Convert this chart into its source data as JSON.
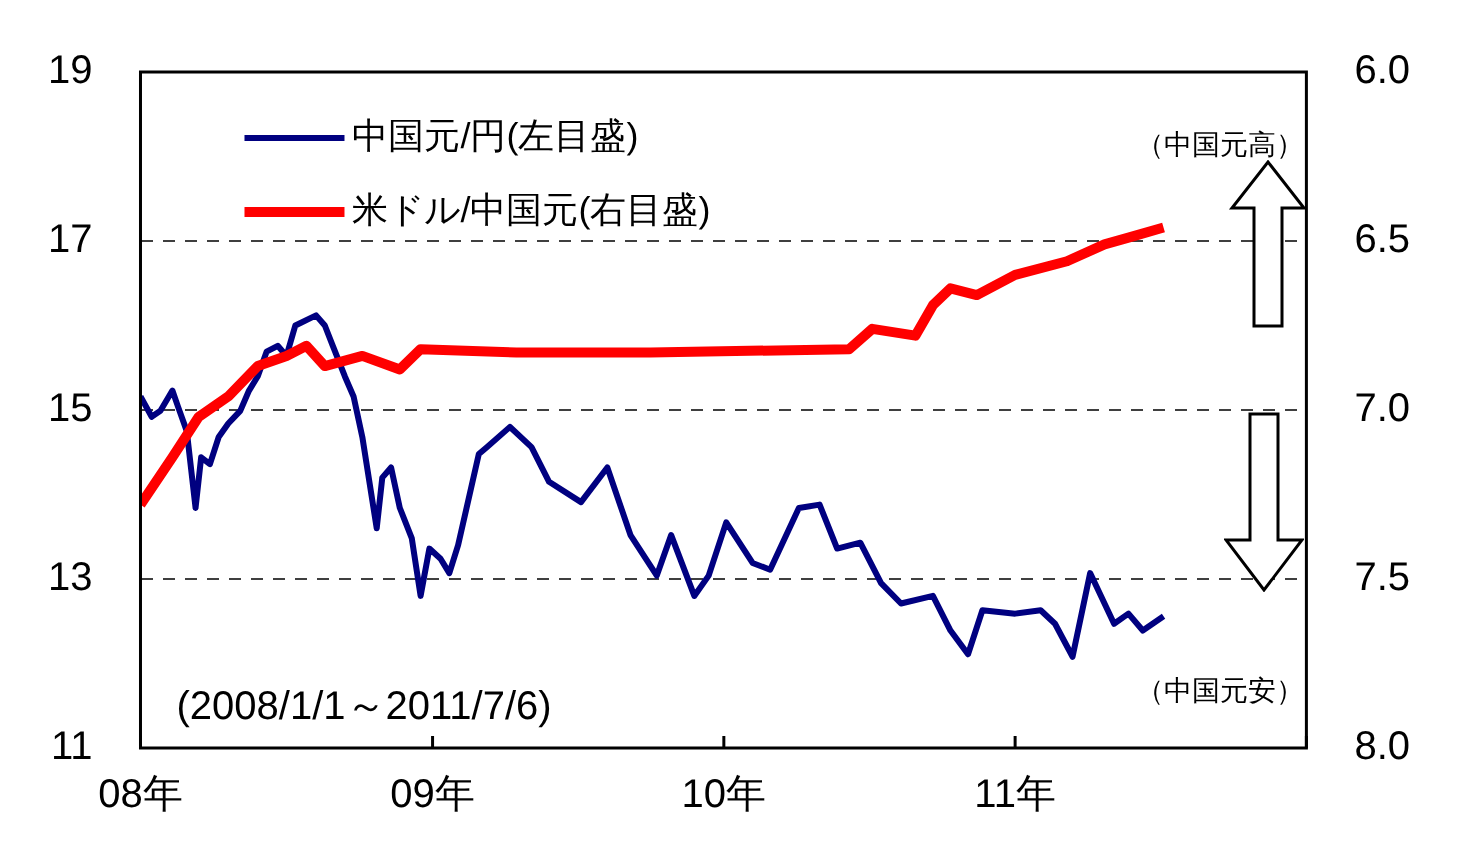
{
  "chart_data": {
    "type": "line",
    "annotations": [
      "(2008/1/1～2011/7/6)",
      "（中国元高）",
      "（中国元安）"
    ],
    "xlim": [
      "2008-01-01",
      "2012-01-01"
    ],
    "xticks": [
      {
        "value": "2008",
        "label": "08年"
      },
      {
        "value": "2009",
        "label": "09年"
      },
      {
        "value": "2010",
        "label": "10年"
      },
      {
        "value": "2011",
        "label": "11年"
      },
      {
        "value": "2012",
        "label": null
      }
    ],
    "ylim": [
      11,
      19
    ],
    "yticks": [
      11,
      13,
      15,
      17,
      19
    ],
    "y2lim": [
      8.0,
      6.0
    ],
    "y2ticks": [
      {
        "value": 6.0,
        "label": "6.0"
      },
      {
        "value": 6.5,
        "label": "6.5"
      },
      {
        "value": 7.0,
        "label": "7.0"
      },
      {
        "value": 7.5,
        "label": "7.5"
      },
      {
        "value": 8.0,
        "label": "8.0"
      }
    ],
    "grid": "y",
    "line_style": "solid",
    "marker": "none",
    "legend": "top left",
    "series": [
      {
        "name": "中国元/円(左目盛)",
        "color": "#000080",
        "x": [
          "2008-01-01",
          "2008-01-15",
          "2008-01-26",
          "2008-02-10",
          "2008-02-17",
          "2008-02-28",
          "2008-03-10",
          "2008-03-17",
          "2008-03-28",
          "2008-04-08",
          "2008-04-20",
          "2008-05-05",
          "2008-05-16",
          "2008-05-27",
          "2008-06-07",
          "2008-06-21",
          "2008-07-02",
          "2008-07-13",
          "2008-08-08",
          "2008-08-19",
          "2008-08-29",
          "2008-09-13",
          "2008-09-24",
          "2008-10-05",
          "2008-10-23",
          "2008-10-30",
          "2008-11-10",
          "2008-11-21",
          "2008-12-06",
          "2008-12-17",
          "2008-12-28",
          "2009-01-11",
          "2009-01-22",
          "2009-02-02",
          "2009-02-28",
          "2009-03-10",
          "2009-04-08",
          "2009-05-05",
          "2009-05-27",
          "2009-07-06",
          "2009-08-08",
          "2009-09-06",
          "2009-10-09",
          "2009-10-27",
          "2009-11-25",
          "2009-12-13",
          "2010-01-04",
          "2010-02-06",
          "2010-02-28",
          "2010-04-05",
          "2010-05-01",
          "2010-05-23",
          "2010-06-21",
          "2010-07-17",
          "2010-08-11",
          "2010-09-20",
          "2010-10-12",
          "2010-11-03",
          "2010-11-21",
          "2011-01-01",
          "2011-02-02",
          "2011-02-20",
          "2011-03-14",
          "2011-04-05",
          "2011-05-05",
          "2011-05-23",
          "2011-06-10",
          "2011-07-06"
        ],
        "values": [
          15.16,
          14.92,
          14.99,
          15.23,
          15.04,
          14.75,
          13.84,
          14.44,
          14.36,
          14.68,
          14.84,
          14.99,
          15.23,
          15.4,
          15.69,
          15.76,
          15.64,
          16.0,
          16.12,
          16.0,
          15.76,
          15.4,
          15.16,
          14.68,
          13.6,
          14.2,
          14.32,
          13.84,
          13.48,
          12.8,
          13.36,
          13.24,
          13.07,
          13.4,
          14.48,
          14.56,
          14.8,
          14.56,
          14.15,
          13.91,
          14.32,
          13.52,
          13.04,
          13.52,
          12.8,
          13.04,
          13.67,
          13.19,
          13.11,
          13.84,
          13.88,
          13.36,
          13.43,
          12.95,
          12.71,
          12.8,
          12.39,
          12.11,
          12.63,
          12.59,
          12.63,
          12.47,
          12.08,
          13.07,
          12.47,
          12.59,
          12.39,
          12.56
        ]
      },
      {
        "name": "米ドル/中国元(右目盛)",
        "color": "#ff0000",
        "axis": "y2",
        "x": [
          "2008-01-01",
          "2008-02-10",
          "2008-03-14",
          "2008-04-20",
          "2008-05-27",
          "2008-07-02",
          "2008-07-27",
          "2008-08-19",
          "2008-10-05",
          "2008-11-21",
          "2008-12-17",
          "2009-04-16",
          "2009-10-01",
          "2010-06-07",
          "2010-07-06",
          "2010-08-29",
          "2010-09-20",
          "2010-10-12",
          "2010-11-14",
          "2011-01-01",
          "2011-03-07",
          "2011-04-23",
          "2011-05-23",
          "2011-07-06"
        ],
        "values": [
          7.28,
          7.14,
          7.02,
          6.96,
          6.87,
          6.84,
          6.81,
          6.87,
          6.84,
          6.88,
          6.82,
          6.83,
          6.83,
          6.82,
          6.76,
          6.78,
          6.69,
          6.64,
          6.66,
          6.6,
          6.56,
          6.51,
          6.49,
          6.46
        ]
      }
    ]
  }
}
